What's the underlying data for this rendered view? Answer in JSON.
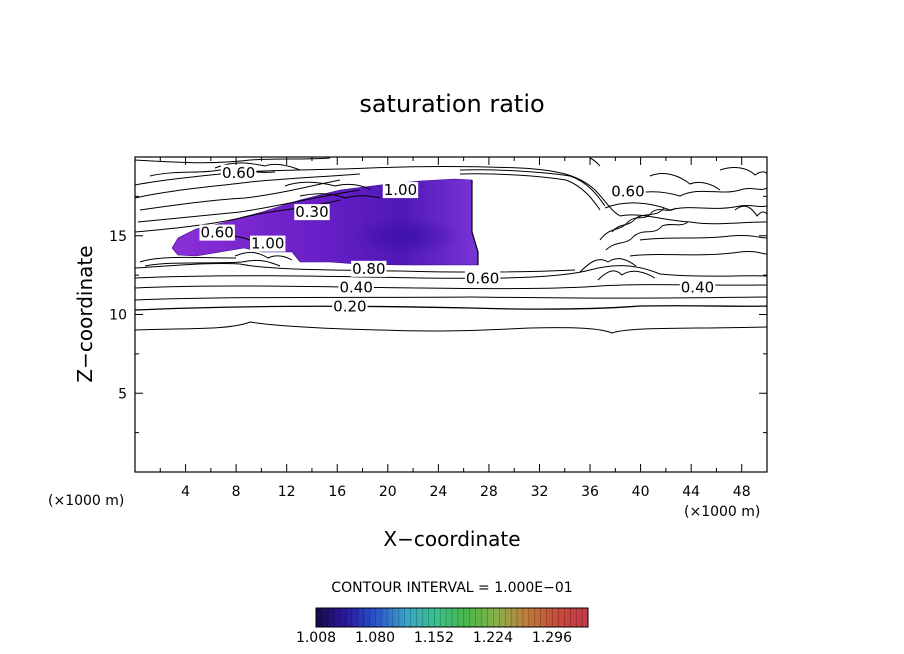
{
  "chart_data": {
    "type": "contour",
    "title": "saturation ratio",
    "xlabel": "X−coordinate",
    "ylabel": "Z−coordinate",
    "x_unit": "(×1000 m)",
    "z_unit": "(×1000 m)",
    "xlim": [
      0,
      50
    ],
    "ylim": [
      0,
      20
    ],
    "x_ticks": [
      4,
      8,
      12,
      16,
      20,
      24,
      28,
      32,
      36,
      40,
      44,
      48
    ],
    "y_ticks": [
      5,
      10,
      15
    ],
    "contour_interval_text": "CONTOUR INTERVAL = 1.000E−01",
    "contour_labels": [
      {
        "text": "0.60",
        "x": 8.2,
        "z": 19.0
      },
      {
        "text": "1.00",
        "x": 21.0,
        "z": 17.9
      },
      {
        "text": "0.60",
        "x": 39.0,
        "z": 17.8
      },
      {
        "text": "0.30",
        "x": 14.0,
        "z": 16.5
      },
      {
        "text": "0.60",
        "x": 6.5,
        "z": 15.2
      },
      {
        "text": "1.00",
        "x": 10.5,
        "z": 14.5
      },
      {
        "text": "0.80",
        "x": 18.5,
        "z": 12.9
      },
      {
        "text": "0.60",
        "x": 27.5,
        "z": 12.3
      },
      {
        "text": "0.40",
        "x": 17.5,
        "z": 11.7
      },
      {
        "text": "0.40",
        "x": 44.5,
        "z": 11.7
      },
      {
        "text": "0.20",
        "x": 17.0,
        "z": 10.5
      }
    ],
    "colorbar": {
      "min": 1.008,
      "max": 1.34,
      "tick_labels": [
        "1.008",
        "1.080",
        "1.152",
        "1.224",
        "1.296"
      ],
      "colors": [
        "#1a0a4a",
        "#2a1a9a",
        "#2a55cc",
        "#3aa6c6",
        "#3ac08a",
        "#4ab64a",
        "#8ab04a",
        "#c07a3a",
        "#c84a3a",
        "#c23a4a"
      ]
    },
    "fill": {
      "color_low": "#8b2fd6",
      "color_high": "#3a10a6"
    }
  }
}
